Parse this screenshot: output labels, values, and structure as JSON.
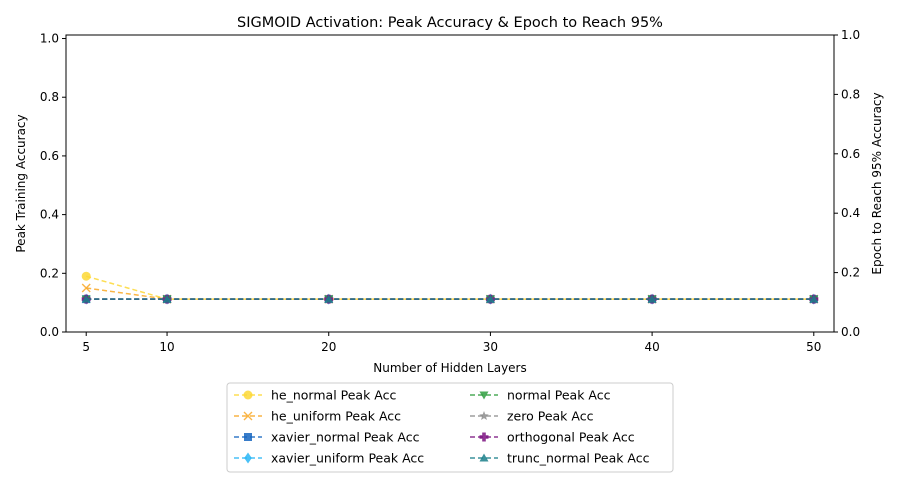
{
  "chart_data": {
    "type": "line",
    "title": "SIGMOID Activation: Peak Accuracy & Epoch to Reach 95%",
    "xlabel": "Number of Hidden Layers",
    "ylabel": "Peak Training Accuracy",
    "y2label": "Epoch to Reach 95% Accuracy",
    "x": [
      5,
      10,
      20,
      30,
      40,
      50
    ],
    "xticks": [
      5,
      10,
      20,
      30,
      40,
      50
    ],
    "xlim": [
      3.75,
      51.25
    ],
    "ylim": [
      0,
      1.012
    ],
    "yticks": [
      0.0,
      0.2,
      0.4,
      0.6,
      0.8,
      1.0
    ],
    "ytick_labels": [
      "0.0",
      "0.2",
      "0.4",
      "0.6",
      "0.8",
      "1.0"
    ],
    "y2lim": [
      0,
      1
    ],
    "y2ticks": [
      0.0,
      0.2,
      0.4,
      0.6,
      0.8,
      1.0
    ],
    "y2tick_labels": [
      "0.0",
      "0.2",
      "0.4",
      "0.6",
      "0.8",
      "1.0"
    ],
    "grid": false,
    "legend_position": "bottom-center",
    "series": [
      {
        "name": "he_normal Peak Acc",
        "marker": "circle",
        "color": "#fdd835",
        "values": [
          0.19,
          0.112,
          0.112,
          0.112,
          0.112,
          0.112
        ]
      },
      {
        "name": "he_uniform Peak Acc",
        "marker": "x",
        "color": "#f9a825",
        "values": [
          0.15,
          0.112,
          0.112,
          0.112,
          0.112,
          0.112
        ]
      },
      {
        "name": "xavier_normal Peak Acc",
        "marker": "square",
        "color": "#1565c0",
        "values": [
          0.112,
          0.112,
          0.112,
          0.112,
          0.112,
          0.112
        ]
      },
      {
        "name": "xavier_uniform Peak Acc",
        "marker": "diamond",
        "color": "#29b6f6",
        "values": [
          0.112,
          0.112,
          0.112,
          0.112,
          0.112,
          0.112
        ]
      },
      {
        "name": "normal Peak Acc",
        "marker": "triangle-down",
        "color": "#2e9e3e",
        "values": [
          0.112,
          0.112,
          0.112,
          0.112,
          0.112,
          0.112
        ]
      },
      {
        "name": "zero Peak Acc",
        "marker": "star",
        "color": "#8c8c8c",
        "values": [
          0.112,
          0.112,
          0.112,
          0.112,
          0.112,
          0.112
        ]
      },
      {
        "name": "orthogonal Peak Acc",
        "marker": "plus",
        "color": "#7b1280",
        "values": [
          0.112,
          0.112,
          0.112,
          0.112,
          0.112,
          0.112
        ]
      },
      {
        "name": "trunc_normal Peak Acc",
        "marker": "triangle-up",
        "color": "#1a7f8a",
        "values": [
          0.112,
          0.112,
          0.112,
          0.112,
          0.112,
          0.112
        ]
      }
    ]
  }
}
